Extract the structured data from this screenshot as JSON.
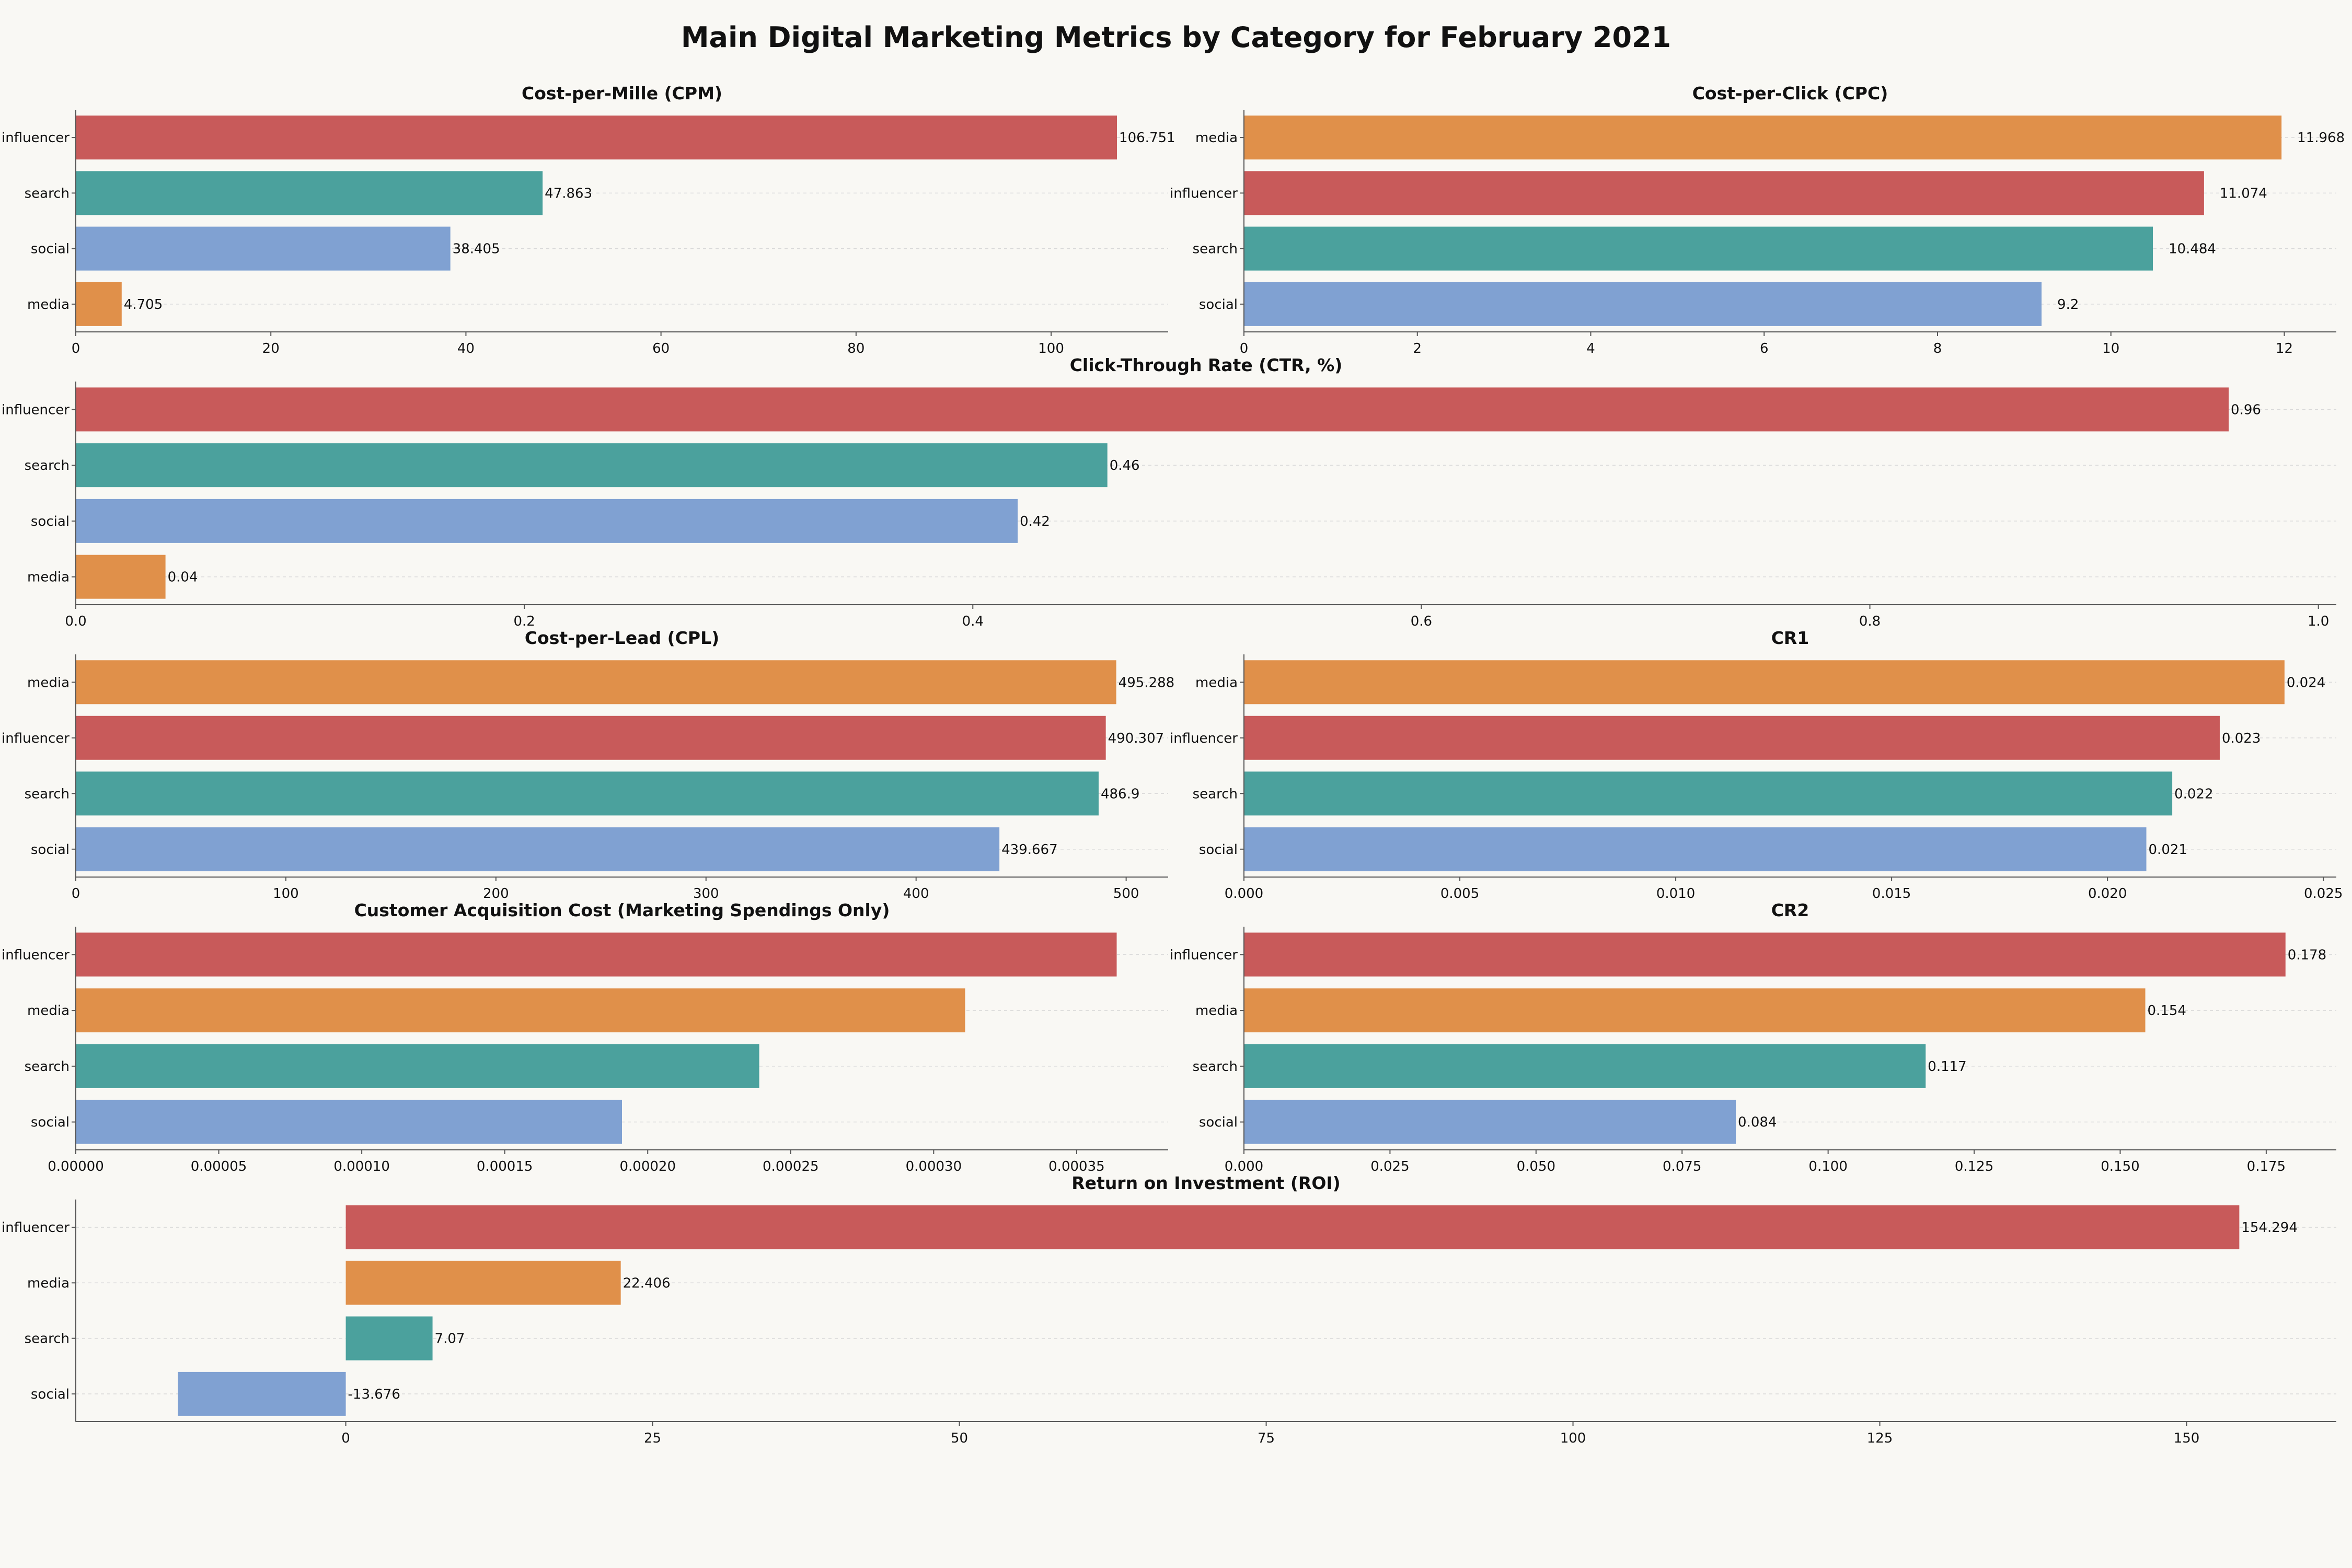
{
  "figure": {
    "title": "Main Digital Marketing Metrics by Category for February 2021"
  },
  "colors": {
    "influencer": "#c85a5a",
    "search": "#4ba19d",
    "social": "#80a1d2",
    "media": "#e0904a"
  },
  "chart_data": [
    {
      "type": "bar",
      "orientation": "horizontal",
      "title": "Cost-per-Mille (CPM)",
      "categories": [
        "influencer",
        "search",
        "social",
        "media"
      ],
      "values": [
        106.751,
        47.863,
        38.405,
        4.705
      ],
      "value_labels": [
        "106.751",
        "47.863",
        "38.405",
        "4.705"
      ],
      "xlim": [
        0,
        112
      ],
      "xticks": [
        0,
        20,
        40,
        60,
        80,
        100
      ],
      "xtick_labels": [
        "0",
        "20",
        "40",
        "60",
        "80",
        "100"
      ],
      "label_gap": "none"
    },
    {
      "type": "bar",
      "orientation": "horizontal",
      "title": "Cost-per-Click (CPC)",
      "categories": [
        "media",
        "influencer",
        "search",
        "social"
      ],
      "values": [
        11.968,
        11.074,
        10.484,
        9.2
      ],
      "value_labels": [
        "11.968",
        "11.074",
        "10.484",
        "9.2"
      ],
      "xlim": [
        0,
        12.6
      ],
      "xticks": [
        0,
        2,
        4,
        6,
        8,
        10,
        12
      ],
      "xtick_labels": [
        "0",
        "2",
        "4",
        "6",
        "8",
        "10",
        "12"
      ],
      "label_gap": "wide"
    },
    {
      "type": "bar",
      "orientation": "horizontal",
      "title": "Click-Through Rate (CTR, %)",
      "categories": [
        "influencer",
        "search",
        "social",
        "media"
      ],
      "values": [
        0.96,
        0.46,
        0.42,
        0.04
      ],
      "value_labels": [
        "0.96",
        "0.46",
        "0.42",
        "0.04"
      ],
      "xlim": [
        0,
        1.008
      ],
      "xticks": [
        0,
        0.2,
        0.4,
        0.6,
        0.8,
        1.0
      ],
      "xtick_labels": [
        "0.0",
        "0.2",
        "0.4",
        "0.6",
        "0.8",
        "1.0"
      ],
      "label_gap": "none"
    },
    {
      "type": "bar",
      "orientation": "horizontal",
      "title": "Cost-per-Lead (CPL)",
      "categories": [
        "media",
        "influencer",
        "search",
        "social"
      ],
      "values": [
        495.288,
        490.307,
        486.9,
        439.667
      ],
      "value_labels": [
        "495.288",
        "490.307",
        "486.9",
        "439.667"
      ],
      "xlim": [
        0,
        520
      ],
      "xticks": [
        0,
        100,
        200,
        300,
        400,
        500
      ],
      "xtick_labels": [
        "0",
        "100",
        "200",
        "300",
        "400",
        "500"
      ],
      "label_gap": "none"
    },
    {
      "type": "bar",
      "orientation": "horizontal",
      "title": "CR1",
      "categories": [
        "media",
        "influencer",
        "search",
        "social"
      ],
      "values": [
        0.024,
        0.023,
        0.022,
        0.021
      ],
      "plot_values": [
        0.0241,
        0.0226,
        0.0215,
        0.0209
      ],
      "value_labels": [
        "0.024",
        "0.023",
        "0.022",
        "0.021"
      ],
      "xlim": [
        0,
        0.0253
      ],
      "xticks": [
        0,
        0.005,
        0.01,
        0.015,
        0.02,
        0.025
      ],
      "xtick_labels": [
        "0.000",
        "0.005",
        "0.010",
        "0.015",
        "0.020",
        "0.025"
      ],
      "label_gap": "none"
    },
    {
      "type": "bar",
      "orientation": "horizontal",
      "title": "Customer Acquisition Cost (Marketing Spendings Only)",
      "categories": [
        "influencer",
        "media",
        "search",
        "social"
      ],
      "values": [
        0.000364,
        0.000311,
        0.000239,
        0.000191
      ],
      "value_labels": [],
      "xlim": [
        0,
        0.000382
      ],
      "xticks": [
        0,
        5e-05,
        0.0001,
        0.00015,
        0.0002,
        0.00025,
        0.0003,
        0.00035
      ],
      "xtick_labels": [
        "0.00000",
        "0.00005",
        "0.00010",
        "0.00015",
        "0.00020",
        "0.00025",
        "0.00030",
        "0.00035"
      ],
      "label_gap": "none"
    },
    {
      "type": "bar",
      "orientation": "horizontal",
      "title": "CR2",
      "categories": [
        "influencer",
        "media",
        "search",
        "social"
      ],
      "values": [
        0.178,
        0.154,
        0.117,
        0.084
      ],
      "plot_values": [
        0.1783,
        0.1543,
        0.1167,
        0.0842
      ],
      "value_labels": [
        "0.178",
        "0.154",
        "0.117",
        "0.084"
      ],
      "xlim": [
        0,
        0.187
      ],
      "xticks": [
        0,
        0.025,
        0.05,
        0.075,
        0.1,
        0.125,
        0.15,
        0.175
      ],
      "xtick_labels": [
        "0.000",
        "0.025",
        "0.050",
        "0.075",
        "0.100",
        "0.125",
        "0.150",
        "0.175"
      ],
      "label_gap": "none"
    },
    {
      "type": "bar",
      "orientation": "horizontal",
      "title": "Return on Investment (ROI)",
      "categories": [
        "influencer",
        "media",
        "search",
        "social"
      ],
      "values": [
        154.294,
        22.406,
        7.07,
        -13.676
      ],
      "value_labels": [
        "154.294",
        "22.406",
        "7.07",
        "-13.676"
      ],
      "xlim": [
        -22,
        162.2
      ],
      "xticks": [
        0,
        25,
        50,
        75,
        100,
        125,
        150
      ],
      "xtick_labels": [
        "0",
        "25",
        "50",
        "75",
        "100",
        "125",
        "150"
      ],
      "label_gap": "none"
    }
  ]
}
